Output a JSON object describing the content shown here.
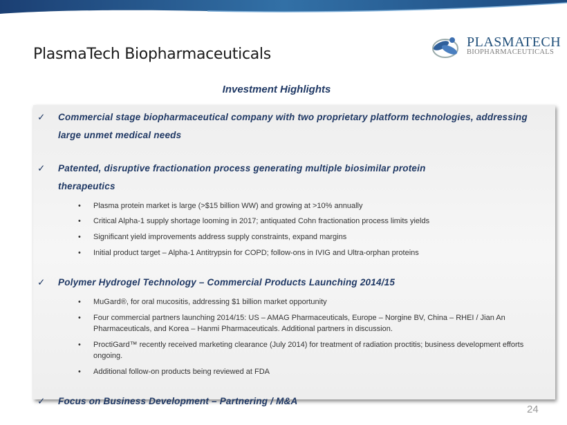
{
  "header": {
    "title": "PlasmaTech Biopharmaceuticals"
  },
  "logo": {
    "main": "PlasmaTech",
    "sub": "Biopharmaceuticals"
  },
  "subtitle": "Investment Highlights",
  "highlights": [
    {
      "text": "Commercial stage biopharmaceutical company with two proprietary platform technologies, addressing large unmet medical needs",
      "bullets": []
    },
    {
      "text": "Patented, disruptive fractionation process generating multiple biosimilar protein therapeutics",
      "bullets": [
        "Plasma protein market is large (>$15 billion WW) and growing at >10% annually",
        "Critical Alpha-1 supply shortage looming in 2017;   antiquated Cohn fractionation process limits yields",
        "Significant yield improvements address supply constraints, expand margins",
        "Initial product target – Alpha-1 Antitrypsin for COPD;  follow-ons in IVIG and Ultra-orphan proteins"
      ]
    },
    {
      "text": "Polymer Hydrogel Technology – Commercial Products Launching 2014/15",
      "bullets": [
        "MuGard®, for oral mucositis, addressing $1 billion market opportunity",
        "Four commercial partners launching 2014/15:   US – AMAG Pharmaceuticals, Europe – Norgine BV, China – RHEI / Jian An Pharmaceuticals, and Korea – Hanmi Pharmaceuticals.  Additional partners in discussion.",
        "ProctiGard™ recently received marketing clearance (July 2014)  for treatment of radiation proctitis;  business development efforts ongoing.",
        "Additional follow-on products being reviewed at FDA"
      ]
    },
    {
      "text": "Focus on Business Development – Partnering / M&A",
      "bullets": []
    }
  ],
  "check_glyph": "✓",
  "bullet_glyph": "•",
  "page_number": "24",
  "colors": {
    "accent": "#1f3864",
    "swoosh": "#2e6399"
  }
}
